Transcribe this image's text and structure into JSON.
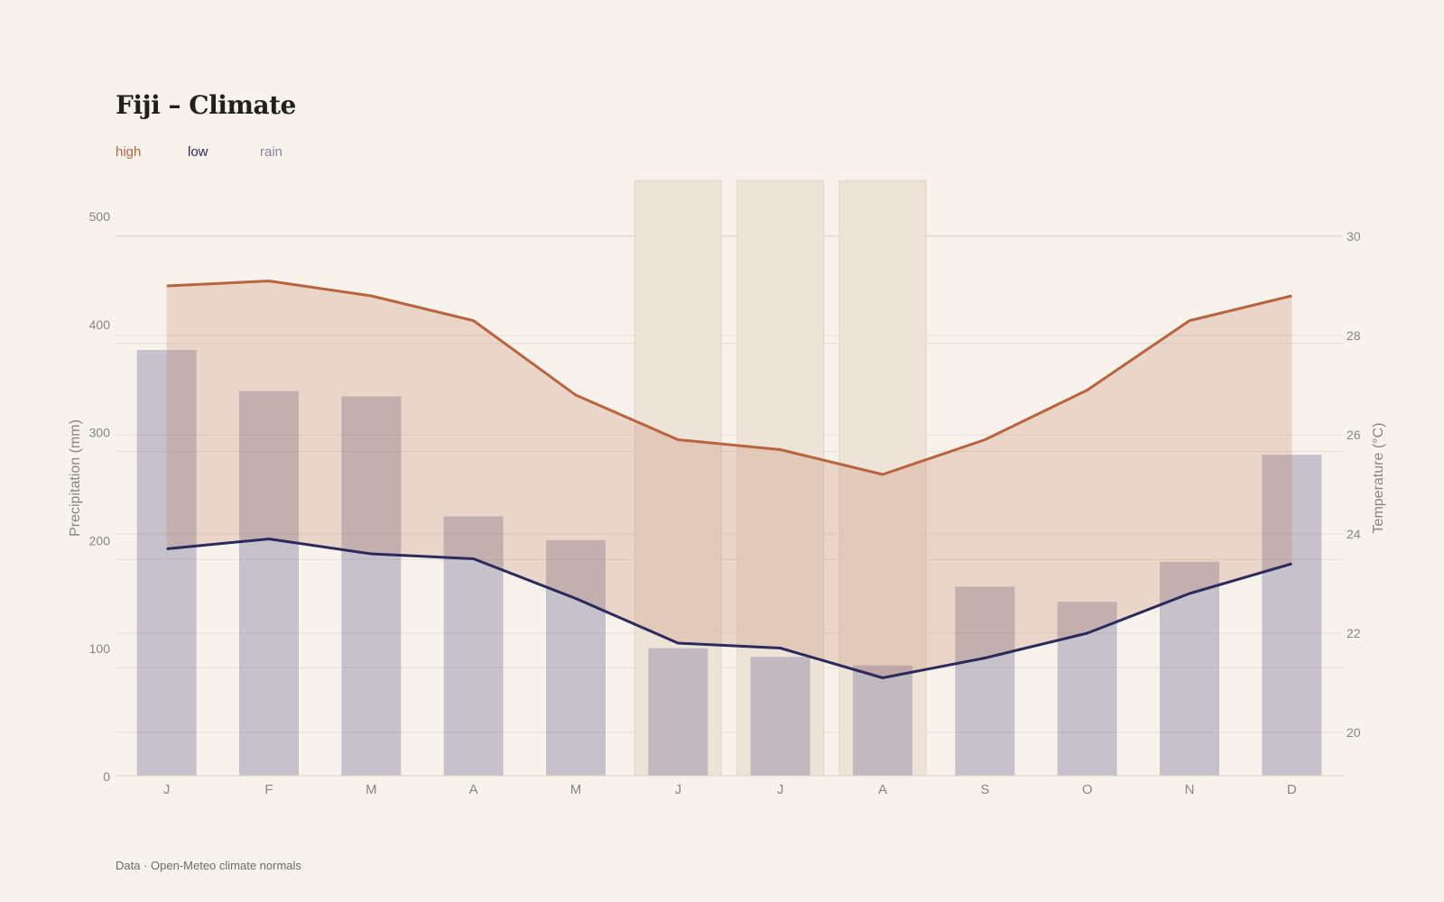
{
  "page": {
    "title": "Fiji – Climate",
    "footer": "Data · Open-Meteo climate normals"
  },
  "legend": {
    "high": {
      "label": "high",
      "color": "#b9643f"
    },
    "low": {
      "label": "low",
      "color": "#2b2a5c"
    },
    "rain": {
      "label": "rain",
      "color": "#8a87a3"
    }
  },
  "chart_data": {
    "type": "bar+line",
    "title": "Fiji – Climate",
    "categories": [
      "J",
      "F",
      "M",
      "A",
      "M",
      "J",
      "J",
      "A",
      "S",
      "O",
      "N",
      "D"
    ],
    "highlight_months": [
      5,
      6,
      7
    ],
    "left_axis": {
      "label": "Precipitation (mm)",
      "min": 0,
      "max": 500,
      "ticks": [
        0,
        100,
        200,
        300,
        400,
        500
      ]
    },
    "right_axis": {
      "label": "Temperature (°C)",
      "min": 19.1,
      "max": 31.1,
      "ticks": [
        20,
        22,
        24,
        26,
        28,
        30
      ]
    },
    "series": [
      {
        "name": "rain",
        "axis": "left",
        "kind": "bar",
        "color": "#8a87a3",
        "values": [
          394,
          356,
          351,
          240,
          218,
          118,
          110,
          102,
          175,
          161,
          198,
          297
        ]
      },
      {
        "name": "high",
        "axis": "right",
        "kind": "line",
        "color": "#b9643f",
        "values": [
          29.0,
          29.1,
          28.8,
          28.3,
          26.8,
          25.9,
          25.7,
          25.2,
          25.9,
          26.9,
          28.3,
          28.8
        ]
      },
      {
        "name": "low",
        "axis": "right",
        "kind": "line",
        "color": "#2b2a5c",
        "values": [
          23.7,
          23.9,
          23.6,
          23.5,
          22.7,
          21.8,
          21.7,
          21.1,
          21.5,
          22.0,
          22.8,
          23.4
        ]
      }
    ],
    "grid": true
  }
}
